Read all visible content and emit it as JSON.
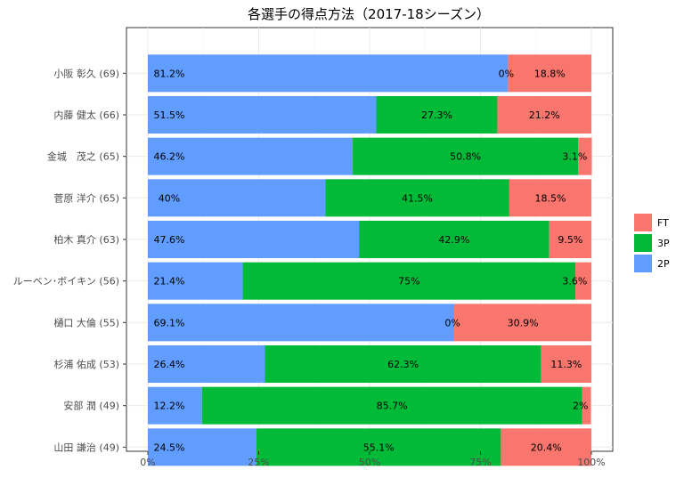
{
  "chart_data": {
    "type": "bar",
    "orientation": "horizontal",
    "stacked": "percent",
    "title": "各選手の得点方法（2017-18シーズン）",
    "xlabel": "",
    "ylabel": "",
    "xlim": [
      0,
      100
    ],
    "x_ticks": [
      "0%",
      "25%",
      "50%",
      "75%",
      "100%"
    ],
    "grid": true,
    "legend_position": "right",
    "categories": [
      "小阪 彰久 (69)",
      "内藤 健太 (66)",
      "金城　茂之 (65)",
      "菅原 洋介 (65)",
      "柏木 真介 (63)",
      "ルーベン･ボイキン (56)",
      "樋口 大倫 (55)",
      "杉浦 佑成 (53)",
      "安部 潤 (49)",
      "山田 謙治 (49)"
    ],
    "series": [
      {
        "name": "2P",
        "color": "#619CFF",
        "values": [
          81.2,
          51.5,
          46.2,
          40,
          47.6,
          21.4,
          69.1,
          26.4,
          12.2,
          24.5
        ],
        "labels": [
          "81.2%",
          "51.5%",
          "46.2%",
          "40%",
          "47.6%",
          "21.4%",
          "69.1%",
          "26.4%",
          "12.2%",
          "24.5%"
        ]
      },
      {
        "name": "3P",
        "color": "#00BA38",
        "values": [
          0,
          27.3,
          50.8,
          41.5,
          42.9,
          75,
          0,
          62.3,
          85.7,
          55.1
        ],
        "labels": [
          "0%",
          "27.3%",
          "50.8%",
          "41.5%",
          "42.9%",
          "75%",
          "0%",
          "62.3%",
          "85.7%",
          "55.1%"
        ]
      },
      {
        "name": "FT",
        "color": "#F8766D",
        "values": [
          18.8,
          21.2,
          3.1,
          18.5,
          9.5,
          3.6,
          30.9,
          11.3,
          2,
          20.4
        ],
        "labels": [
          "18.8%",
          "21.2%",
          "3.1%",
          "18.5%",
          "9.5%",
          "3.6%",
          "30.9%",
          "11.3%",
          "2%",
          "20.4%"
        ]
      }
    ],
    "legend_order": [
      "FT",
      "3P",
      "2P"
    ]
  }
}
